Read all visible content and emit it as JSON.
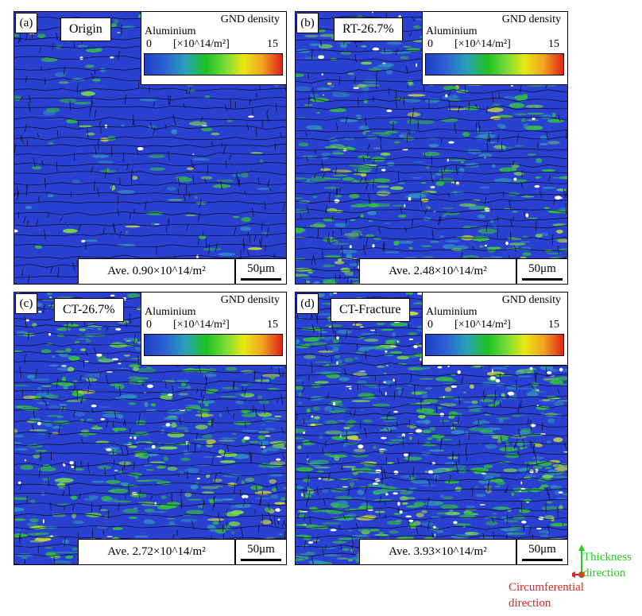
{
  "panels": [
    {
      "letter": "(a)",
      "name": "Origin",
      "avg": "Ave. 0.90×10^14/m²",
      "scale": "50μm",
      "green": 0.05,
      "white": 0.008
    },
    {
      "letter": "(b)",
      "name": "RT-26.7%",
      "avg": "Ave. 2.48×10^14/m²",
      "scale": "50μm",
      "green": 0.45,
      "white": 0.04
    },
    {
      "letter": "(c)",
      "name": "CT-26.7%",
      "avg": "Ave. 2.72×10^14/m²",
      "scale": "50μm",
      "green": 0.55,
      "white": 0.06
    },
    {
      "letter": "(d)",
      "name": "CT-Fracture",
      "avg": "Ave. 3.93×10^14/m²",
      "scale": "50μm",
      "green": 0.72,
      "white": 0.12
    }
  ],
  "legend": {
    "title": "GND density",
    "material": "Aluminium",
    "min": "0",
    "max": "15",
    "unit": "[×10^14/m²]"
  },
  "axes": {
    "thickness_line1": "Thickness",
    "thickness_line2": "direction",
    "circ_line1": "Circumferential",
    "circ_line2": "direction",
    "thickness_color": "#22cc22",
    "circ_color": "#dd2222"
  }
}
